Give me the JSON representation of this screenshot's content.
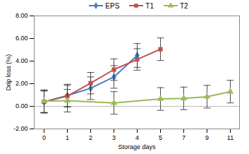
{
  "chart_data": {
    "type": "line",
    "x_label": "Storage days",
    "y_label": "Drip loss (%)",
    "categories": [
      "0",
      "1",
      "2",
      "3",
      "4",
      "5",
      "7",
      "9",
      "11"
    ],
    "series": [
      {
        "name": "EPS",
        "color": "#4a7ebb",
        "marker": "diamond",
        "values": [
          0.4,
          0.95,
          1.6,
          2.6,
          4.5,
          null,
          null,
          null,
          null
        ],
        "errors": [
          1.0,
          1.0,
          1.0,
          1.0,
          1.05,
          null,
          null,
          null,
          null
        ]
      },
      {
        "name": "T1",
        "color": "#c0504d",
        "marker": "square",
        "values": [
          0.4,
          0.9,
          2.05,
          3.25,
          4.15,
          5.05,
          null,
          null,
          null
        ],
        "errors": [
          0.95,
          0.95,
          0.95,
          0.95,
          0.95,
          1.0,
          null,
          null,
          null
        ]
      },
      {
        "name": "T2",
        "color": "#9bbb59",
        "marker": "triangle",
        "values": [
          0.45,
          0.5,
          null,
          0.3,
          null,
          0.65,
          0.7,
          0.85,
          1.3
        ],
        "errors": [
          1.0,
          1.0,
          null,
          1.0,
          null,
          1.0,
          1.0,
          1.0,
          1.0
        ]
      }
    ],
    "ylim": [
      -2,
      8
    ],
    "yticks": [
      {
        "value": -2,
        "label": "-2.00"
      },
      {
        "value": 0,
        "label": "0.00"
      },
      {
        "value": 2,
        "label": "2.00"
      },
      {
        "value": 4,
        "label": "4.00"
      },
      {
        "value": 6,
        "label": "6.00"
      },
      {
        "value": 8,
        "label": "8.00"
      }
    ],
    "grid": false,
    "legend": "top"
  }
}
